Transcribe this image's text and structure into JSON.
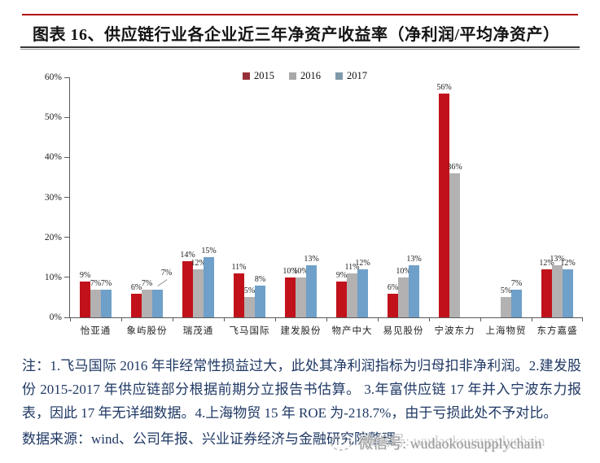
{
  "header": {
    "title": "图表 16、供应链行业各企业近三年净资产收益率（净利润/平均净资产）",
    "accent_rule_color": "#b40a0a"
  },
  "chart_data": {
    "type": "bar",
    "title": "供应链行业各企业近三年净资产收益率（净利润/平均净资产）",
    "categories": [
      "怡亚通",
      "象屿股份",
      "瑞茂通",
      "飞马国际",
      "建发股份",
      "物产中大",
      "易见股份",
      "宁波东力",
      "上海物贸",
      "东方嘉盛"
    ],
    "series": [
      {
        "name": "2015",
        "color": "#c1121b",
        "legend_color": "#97303a",
        "values": [
          9,
          6,
          14,
          11,
          10,
          9,
          6,
          56,
          null,
          12
        ]
      },
      {
        "name": "2016",
        "color": "#b3b1b1",
        "legend_color": "#a9a9a9",
        "values": [
          7,
          7,
          12,
          5,
          10,
          11,
          10,
          36,
          5,
          13
        ]
      },
      {
        "name": "2017",
        "color": "#6fa0c9",
        "legend_color": "#7f99a9",
        "values": [
          7,
          7,
          15,
          8,
          13,
          12,
          13,
          null,
          7,
          12
        ]
      }
    ],
    "unit": "%",
    "ylim": [
      0,
      60
    ],
    "y_ticks": [
      "0%",
      "10%",
      "20%",
      "30%",
      "40%",
      "50%",
      "60%"
    ],
    "grid": false,
    "legend_position": "top-center",
    "callout": {
      "category_index": 1,
      "series_index": 2
    }
  },
  "notes": {
    "note_text": "注：1.飞马国际 2016 年非经常性损益过大，此处其净利润指标为归母扣非净利润。2.建发股份 2015-2017 年供应链部分根据前期分立报告书估算。 3.年富供应链 17 年并入宁波东力报表，因此 17 年无详细数据。4.上海物贸 15 年 ROE 为-218.7%，由于亏损此处不予对比。",
    "source_text": "数据来源：wind、公司年报、兴业证券经济与金融研究院整理"
  },
  "watermark": {
    "text": "微信号: wudaokousupplychain"
  }
}
